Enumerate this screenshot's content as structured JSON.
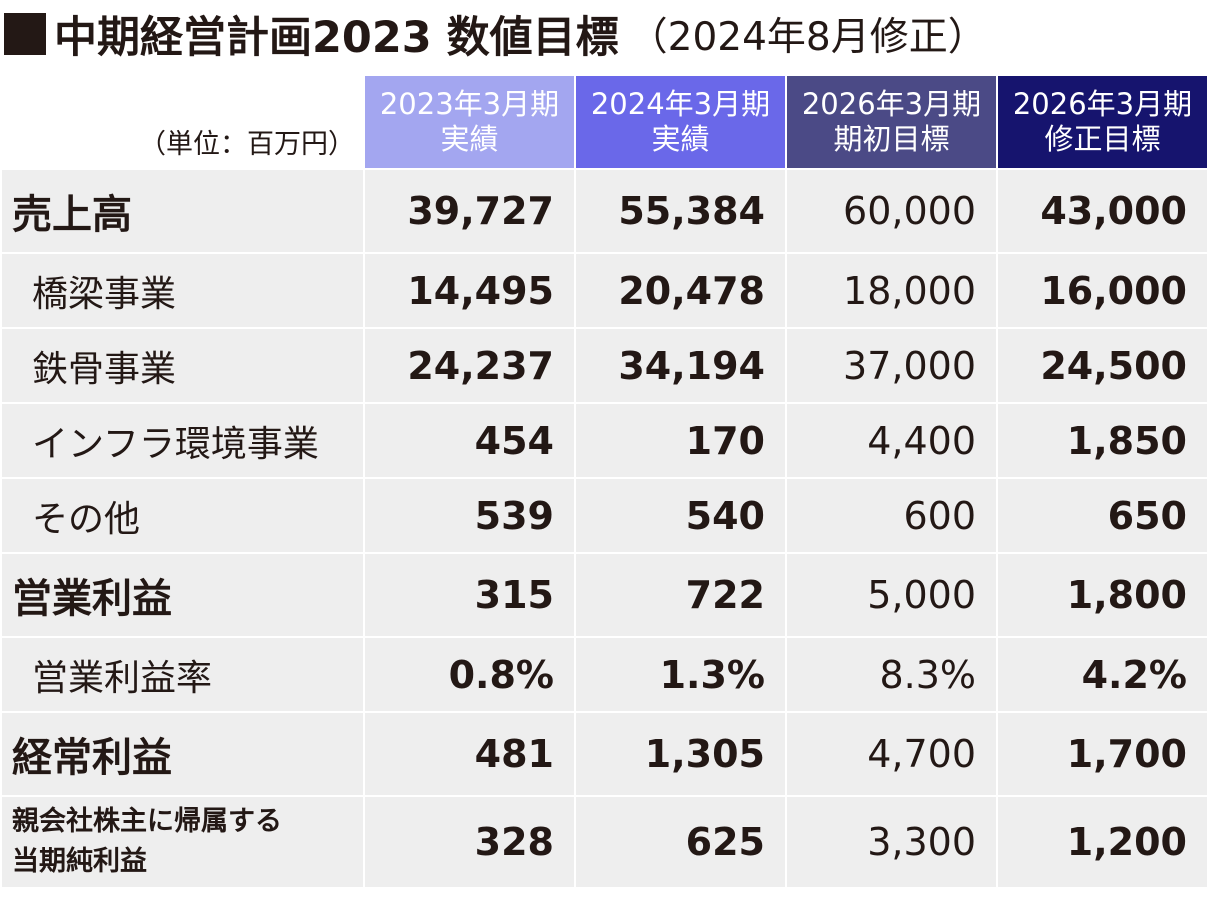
{
  "title": {
    "main": "中期経営計画2023 数値目標",
    "sub": "（2024年8月修正）"
  },
  "table": {
    "unit": "（単位：百万円）",
    "columns": [
      {
        "line1": "2023年3月期",
        "line2": "実績"
      },
      {
        "line1": "2024年3月期",
        "line2": "実績"
      },
      {
        "line1": "2026年3月期",
        "line2": "期初目標"
      },
      {
        "line1": "2026年3月期",
        "line2": "修正目標"
      }
    ],
    "rows": [
      {
        "label": "売上高",
        "values": [
          "39,727",
          "55,384",
          "60,000",
          "43,000"
        ]
      },
      {
        "label": "橋梁事業",
        "values": [
          "14,495",
          "20,478",
          "18,000",
          "16,000"
        ]
      },
      {
        "label": "鉄骨事業",
        "values": [
          "24,237",
          "34,194",
          "37,000",
          "24,500"
        ]
      },
      {
        "label": "インフラ環境事業",
        "values": [
          "454",
          "170",
          "4,400",
          "1,850"
        ]
      },
      {
        "label": "その他",
        "values": [
          "539",
          "540",
          "600",
          "650"
        ]
      },
      {
        "label": "営業利益",
        "values": [
          "315",
          "722",
          "5,000",
          "1,800"
        ]
      },
      {
        "label": "営業利益率",
        "values": [
          "0.8%",
          "1.3%",
          "8.3%",
          "4.2%"
        ]
      },
      {
        "label": "経常利益",
        "values": [
          "481",
          "1,305",
          "4,700",
          "1,700"
        ]
      },
      {
        "label_line1": "親会社株主に帰属する",
        "label_line2": "当期純利益",
        "values": [
          "328",
          "625",
          "3,300",
          "1,200"
        ]
      }
    ]
  },
  "colors": {
    "col_2023": "#a3a6f0",
    "col_2024": "#6a68e9",
    "col_2026_initial": "#4b4a86",
    "col_2026_revised": "#16146e",
    "row_bg": "#eeeeee",
    "text": "#231815"
  },
  "icons": [
    "black-square-bullet"
  ]
}
